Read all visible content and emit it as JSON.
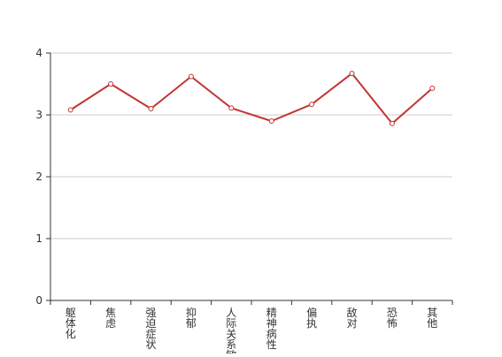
{
  "chart_data": {
    "type": "line",
    "title": "",
    "xlabel": "",
    "ylabel": "",
    "categories": [
      "躯体化",
      "焦虑",
      "强迫症状",
      "抑郁",
      "人际关系敏感",
      "精神病性",
      "偏执",
      "敌对",
      "恐怖",
      "其他"
    ],
    "series": [
      {
        "values": [
          3.08,
          3.5,
          3.1,
          3.62,
          3.11,
          2.9,
          3.17,
          3.67,
          2.86,
          3.43
        ]
      }
    ],
    "ylim": [
      0,
      4
    ],
    "yticks": [
      0,
      1,
      2,
      3,
      4
    ],
    "grid": true,
    "colors": {
      "line": "#c23531",
      "grid": "#cccccc",
      "axis": "#333333"
    }
  }
}
